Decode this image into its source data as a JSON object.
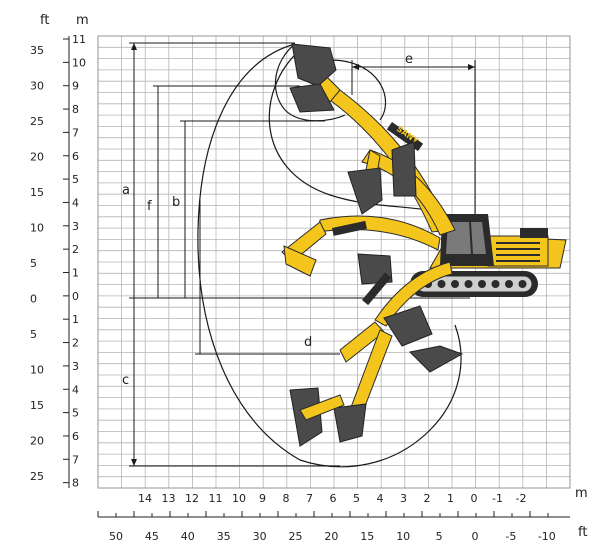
{
  "units": {
    "ft_top": "ft",
    "m_top": "m",
    "m_bottom": "m",
    "ft_bottom": "ft"
  },
  "left_ft_ticks": [
    "35",
    "30",
    "25",
    "20",
    "15",
    "10",
    "5",
    "0",
    "5",
    "10",
    "15",
    "20",
    "25"
  ],
  "left_m_ticks": [
    "11",
    "10",
    "9",
    "8",
    "7",
    "6",
    "5",
    "4",
    "3",
    "2",
    "1",
    "0",
    "1",
    "2",
    "3",
    "4",
    "5",
    "6",
    "7",
    "8"
  ],
  "bottom_m_ticks": [
    "14",
    "13",
    "12",
    "11",
    "10",
    "9",
    "8",
    "7",
    "6",
    "5",
    "4",
    "3",
    "2",
    "1",
    "0",
    "-1",
    "-2"
  ],
  "bottom_ft_ticks": [
    "50",
    "45",
    "40",
    "35",
    "30",
    "25",
    "20",
    "15",
    "10",
    "5",
    "0",
    "-5",
    "-10"
  ],
  "dimensions": {
    "a": "a",
    "b": "b",
    "c": "c",
    "d": "d",
    "e": "e",
    "f": "f"
  },
  "brand": "SANY",
  "colors": {
    "machine": "#f4c51c",
    "dark": "#2b2b2b",
    "bucket": "#4a4a4a",
    "grid": "#b5b5b5"
  }
}
